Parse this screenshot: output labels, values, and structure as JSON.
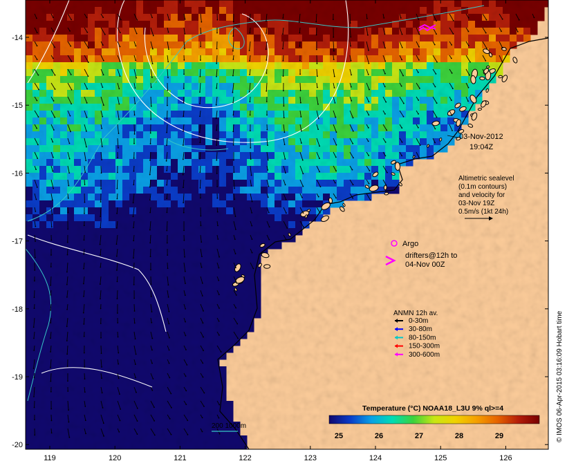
{
  "map": {
    "date": "03-Nov-2012",
    "time": "19:04Z",
    "altimetry_lines": [
      "Altimetric sealevel",
      "(0.1m contours)",
      "and velocity for",
      "03-Nov 19Z",
      "0.5m/s (1kt 24h)"
    ],
    "argo_label": "Argo",
    "drifters_lines": [
      "drifters@12h to",
      "04-Nov 00Z"
    ],
    "anmn": {
      "title": "ANMN 12h av.",
      "items": [
        {
          "label": "0-30m",
          "color": "#000000"
        },
        {
          "label": "30-80m",
          "color": "#0000ff"
        },
        {
          "label": "80-150m",
          "color": "#00c8c8"
        },
        {
          "label": "150-300m",
          "color": "#ff0000"
        },
        {
          "label": "300-600m",
          "color": "#ff00ff"
        }
      ]
    },
    "colorbar": {
      "title": "Temperature (°C) NOAA18_L3U 9% ql>=4",
      "ticks": [
        "25",
        "26",
        "27",
        "28",
        "29"
      ],
      "stops": [
        "#10086e",
        "#0a3cc8",
        "#0aa0e6",
        "#00dcb4",
        "#3cd23c",
        "#c8e614",
        "#f0d200",
        "#f5a000",
        "#e66400",
        "#b41e0a",
        "#780000"
      ]
    },
    "depth_label": "200  1000m",
    "x_ticks": [
      "119",
      "120",
      "121",
      "122",
      "123",
      "124",
      "125",
      "126"
    ],
    "y_ticks": [
      "-14",
      "-15",
      "-16",
      "-17",
      "-18",
      "-19",
      "-20"
    ],
    "credit": "© IMOS 06-Apr-2015 03:16:09 Hobart time",
    "colors": {
      "land": "#fccc9a",
      "coast": "#000000",
      "contour": "#ffffff",
      "isobath": "#37c8c8"
    }
  }
}
